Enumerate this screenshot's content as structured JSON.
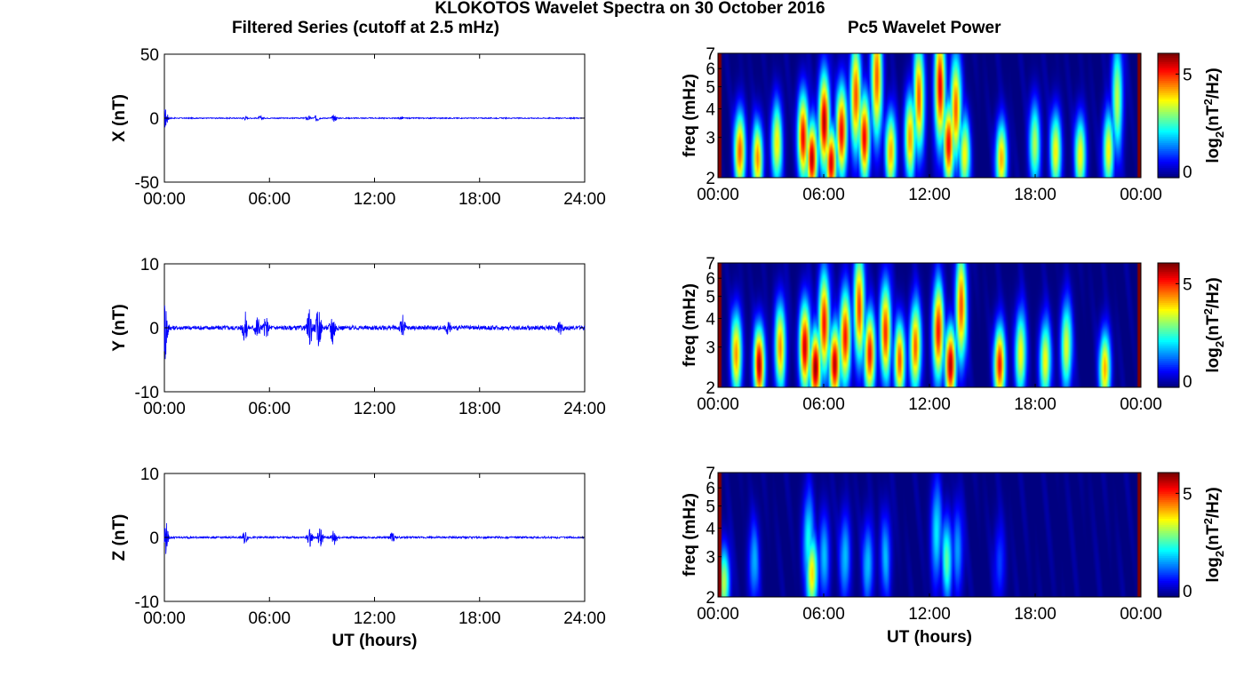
{
  "figure": {
    "title": "KLOKOTOS Wavelet Spectra on 30 October 2016",
    "left_title": "Filtered Series (cutoff at 2.5 mHz)",
    "right_title": "Pc5 Wavelet Power"
  },
  "colors": {
    "trace": "#0000ff",
    "axes": "#000000",
    "colormap": "jet"
  },
  "chart_data": [
    {
      "type": "line",
      "panel": "X",
      "ylabel": "X (nT)",
      "xlabel": "",
      "ylim": [
        -50,
        50
      ],
      "yticks": [
        "50",
        "0",
        "-50"
      ],
      "xticks": [
        "00:00",
        "06:00",
        "12:00",
        "18:00",
        "24:00"
      ],
      "xlim_hours": [
        0,
        24
      ],
      "bursts": [
        {
          "t": 0.05,
          "amp": 8
        },
        {
          "t": 4.6,
          "amp": 1.2
        },
        {
          "t": 5.5,
          "amp": 1.5
        },
        {
          "t": 8.2,
          "amp": 1.8
        },
        {
          "t": 8.7,
          "amp": 2.5
        },
        {
          "t": 9.7,
          "amp": 2.5
        },
        {
          "t": 13.5,
          "amp": 1.0
        }
      ],
      "baseline_noise": 0.4
    },
    {
      "type": "line",
      "panel": "Y",
      "ylabel": "Y (nT)",
      "xlabel": "",
      "ylim": [
        -10,
        10
      ],
      "yticks": [
        "10",
        "0",
        "-10"
      ],
      "xticks": [
        "00:00",
        "06:00",
        "12:00",
        "18:00",
        "24:00"
      ],
      "xlim_hours": [
        0,
        24
      ],
      "bursts": [
        {
          "t": 0.05,
          "amp": 5.2
        },
        {
          "t": 4.6,
          "amp": 2.3
        },
        {
          "t": 5.3,
          "amp": 2.0
        },
        {
          "t": 5.8,
          "amp": 1.5
        },
        {
          "t": 8.3,
          "amp": 3.0
        },
        {
          "t": 8.8,
          "amp": 3.2
        },
        {
          "t": 9.6,
          "amp": 3.0
        },
        {
          "t": 13.6,
          "amp": 1.7
        },
        {
          "t": 16.2,
          "amp": 0.8
        },
        {
          "t": 22.6,
          "amp": 0.8
        }
      ],
      "baseline_noise": 0.35
    },
    {
      "type": "line",
      "panel": "Z",
      "ylabel": "Z (nT)",
      "xlabel": "UT (hours)",
      "ylim": [
        -10,
        10
      ],
      "yticks": [
        "10",
        "0",
        "-10"
      ],
      "xticks": [
        "00:00",
        "06:00",
        "12:00",
        "18:00",
        "24:00"
      ],
      "xlim_hours": [
        0,
        24
      ],
      "bursts": [
        {
          "t": 0.05,
          "amp": 3.0
        },
        {
          "t": 4.6,
          "amp": 1.0
        },
        {
          "t": 8.3,
          "amp": 1.3
        },
        {
          "t": 8.9,
          "amp": 1.6
        },
        {
          "t": 9.7,
          "amp": 1.6
        },
        {
          "t": 13.0,
          "amp": 0.8
        }
      ],
      "baseline_noise": 0.15
    },
    {
      "type": "heatmap",
      "panel": "X",
      "ylabel": "freq (mHz)",
      "xlabel": "",
      "yticks": [
        "2",
        "3",
        "4",
        "5",
        "6",
        "7"
      ],
      "ylim_mhz": [
        2,
        7
      ],
      "xticks": [
        "00:00",
        "06:00",
        "12:00",
        "18:00",
        "00:00"
      ],
      "xlim_hours": [
        0,
        24
      ],
      "colorbar": {
        "label_base": "log",
        "label_sub": "2",
        "label_mid": "(nT",
        "label_sup": "2",
        "label_end": "/Hz)",
        "ticks": [
          "5",
          "0"
        ],
        "range": [
          0,
          6
        ]
      },
      "blobs": [
        {
          "t": 1.2,
          "f": 2.6,
          "p": 5.0
        },
        {
          "t": 2.2,
          "f": 2.4,
          "p": 4.5
        },
        {
          "t": 3.3,
          "f": 2.8,
          "p": 4.0
        },
        {
          "t": 4.8,
          "f": 3.0,
          "p": 5.5
        },
        {
          "t": 5.3,
          "f": 2.4,
          "p": 6.0
        },
        {
          "t": 6.0,
          "f": 3.5,
          "p": 6.0
        },
        {
          "t": 6.4,
          "f": 2.3,
          "p": 5.8
        },
        {
          "t": 7.0,
          "f": 3.2,
          "p": 5.5
        },
        {
          "t": 7.8,
          "f": 4.5,
          "p": 5.0
        },
        {
          "t": 8.3,
          "f": 3.0,
          "p": 5.5
        },
        {
          "t": 9.0,
          "f": 5.5,
          "p": 5.0
        },
        {
          "t": 9.8,
          "f": 2.6,
          "p": 4.5
        },
        {
          "t": 10.9,
          "f": 3.0,
          "p": 4.5
        },
        {
          "t": 11.4,
          "f": 4.5,
          "p": 4.8
        },
        {
          "t": 12.6,
          "f": 5.0,
          "p": 5.5
        },
        {
          "t": 13.1,
          "f": 2.8,
          "p": 5.5
        },
        {
          "t": 13.5,
          "f": 4.0,
          "p": 5.0
        },
        {
          "t": 14.0,
          "f": 2.5,
          "p": 4.0
        },
        {
          "t": 16.1,
          "f": 2.4,
          "p": 4.5
        },
        {
          "t": 18.0,
          "f": 2.8,
          "p": 3.5
        },
        {
          "t": 19.2,
          "f": 2.6,
          "p": 4.0
        },
        {
          "t": 20.6,
          "f": 2.5,
          "p": 4.0
        },
        {
          "t": 22.2,
          "f": 2.6,
          "p": 4.0
        },
        {
          "t": 22.7,
          "f": 4.5,
          "p": 3.5
        }
      ]
    },
    {
      "type": "heatmap",
      "panel": "Y",
      "ylabel": "freq (mHz)",
      "xlabel": "",
      "yticks": [
        "2",
        "3",
        "4",
        "5",
        "6",
        "7"
      ],
      "ylim_mhz": [
        2,
        7
      ],
      "xticks": [
        "00:00",
        "06:00",
        "12:00",
        "18:00",
        "00:00"
      ],
      "xlim_hours": [
        0,
        24
      ],
      "colorbar": {
        "label_base": "log",
        "label_sub": "2",
        "label_mid": "(nT",
        "label_sup": "2",
        "label_end": "/Hz)",
        "ticks": [
          "5",
          "0"
        ],
        "range": [
          0,
          6
        ]
      },
      "blobs": [
        {
          "t": 1.0,
          "f": 2.8,
          "p": 4.5
        },
        {
          "t": 2.3,
          "f": 2.5,
          "p": 5.8
        },
        {
          "t": 3.5,
          "f": 3.0,
          "p": 4.5
        },
        {
          "t": 4.9,
          "f": 3.0,
          "p": 5.8
        },
        {
          "t": 5.5,
          "f": 2.4,
          "p": 6.2
        },
        {
          "t": 6.0,
          "f": 3.8,
          "p": 5.5
        },
        {
          "t": 6.6,
          "f": 2.5,
          "p": 6.0
        },
        {
          "t": 7.2,
          "f": 3.3,
          "p": 5.5
        },
        {
          "t": 8.0,
          "f": 4.5,
          "p": 5.0
        },
        {
          "t": 8.6,
          "f": 2.8,
          "p": 5.5
        },
        {
          "t": 9.5,
          "f": 3.5,
          "p": 5.2
        },
        {
          "t": 10.3,
          "f": 2.6,
          "p": 5.0
        },
        {
          "t": 11.2,
          "f": 3.0,
          "p": 5.0
        },
        {
          "t": 12.5,
          "f": 3.5,
          "p": 5.5
        },
        {
          "t": 13.2,
          "f": 2.5,
          "p": 6.0
        },
        {
          "t": 13.8,
          "f": 4.5,
          "p": 5.0
        },
        {
          "t": 16.0,
          "f": 2.5,
          "p": 5.5
        },
        {
          "t": 17.2,
          "f": 2.8,
          "p": 4.0
        },
        {
          "t": 18.6,
          "f": 2.6,
          "p": 4.0
        },
        {
          "t": 19.8,
          "f": 3.0,
          "p": 3.8
        },
        {
          "t": 22.0,
          "f": 2.4,
          "p": 4.5
        }
      ]
    },
    {
      "type": "heatmap",
      "panel": "Z",
      "ylabel": "freq (mHz)",
      "xlabel": "UT (hours)",
      "yticks": [
        "2",
        "3",
        "4",
        "5",
        "6",
        "7"
      ],
      "ylim_mhz": [
        2,
        7
      ],
      "xticks": [
        "00:00",
        "06:00",
        "12:00",
        "18:00",
        "00:00"
      ],
      "xlim_hours": [
        0,
        24
      ],
      "colorbar": {
        "label_base": "log",
        "label_sub": "2",
        "label_mid": "(nT",
        "label_sup": "2",
        "label_end": "/Hz)",
        "ticks": [
          "5",
          "0"
        ],
        "range": [
          0,
          6
        ]
      },
      "blobs": [
        {
          "t": 0.3,
          "f": 2.3,
          "p": 3.5
        },
        {
          "t": 2.0,
          "f": 2.8,
          "p": 1.8
        },
        {
          "t": 5.1,
          "f": 3.5,
          "p": 2.5
        },
        {
          "t": 5.3,
          "f": 2.5,
          "p": 4.2
        },
        {
          "t": 6.0,
          "f": 3.0,
          "p": 2.0
        },
        {
          "t": 7.2,
          "f": 3.0,
          "p": 2.0
        },
        {
          "t": 8.5,
          "f": 2.8,
          "p": 2.0
        },
        {
          "t": 9.5,
          "f": 3.0,
          "p": 1.8
        },
        {
          "t": 12.4,
          "f": 3.8,
          "p": 2.3
        },
        {
          "t": 13.0,
          "f": 2.9,
          "p": 2.8
        },
        {
          "t": 13.6,
          "f": 3.2,
          "p": 1.8
        },
        {
          "t": 16.0,
          "f": 2.8,
          "p": 1.2
        }
      ]
    }
  ]
}
